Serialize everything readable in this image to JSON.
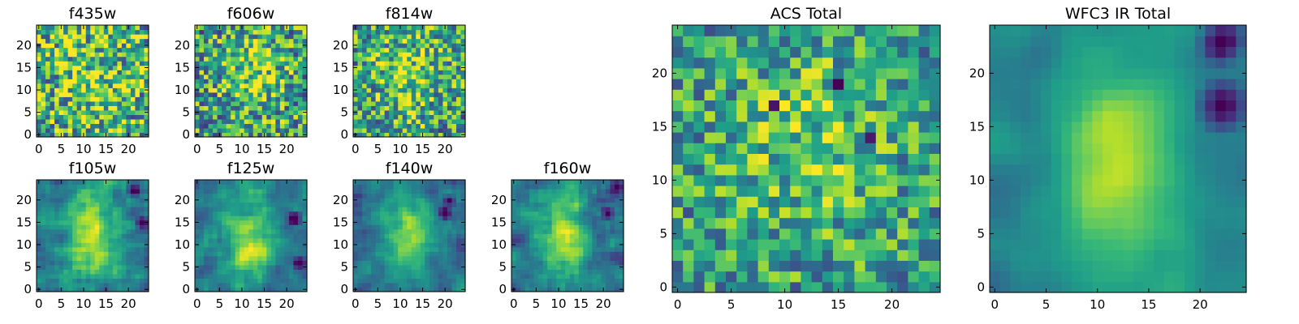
{
  "chart_data": [
    {
      "type": "heatmap",
      "title": "f435w",
      "xlim": [
        -0.5,
        24.5
      ],
      "ylim": [
        -0.5,
        24.5
      ],
      "x_ticks": [
        0,
        5,
        10,
        15,
        20
      ],
      "y_ticks": [
        0,
        5,
        10,
        15,
        20
      ],
      "colormap": "viridis",
      "grid": false
    },
    {
      "type": "heatmap",
      "title": "f606w",
      "xlim": [
        -0.5,
        24.5
      ],
      "ylim": [
        -0.5,
        24.5
      ],
      "x_ticks": [
        0,
        5,
        10,
        15,
        20
      ],
      "y_ticks": [
        0,
        5,
        10,
        15,
        20
      ],
      "colormap": "viridis",
      "grid": false
    },
    {
      "type": "heatmap",
      "title": "f814w",
      "xlim": [
        -0.5,
        24.5
      ],
      "ylim": [
        -0.5,
        24.5
      ],
      "x_ticks": [
        0,
        5,
        10,
        15,
        20
      ],
      "y_ticks": [
        0,
        5,
        10,
        15,
        20
      ],
      "colormap": "viridis",
      "grid": false
    },
    {
      "type": "heatmap",
      "title": "f105w",
      "xlim": [
        -0.5,
        24.5
      ],
      "ylim": [
        -0.5,
        24.5
      ],
      "x_ticks": [
        0,
        5,
        10,
        15,
        20
      ],
      "y_ticks": [
        0,
        5,
        10,
        15,
        20
      ],
      "colormap": "viridis",
      "grid": false
    },
    {
      "type": "heatmap",
      "title": "f125w",
      "xlim": [
        -0.5,
        24.5
      ],
      "ylim": [
        -0.5,
        24.5
      ],
      "x_ticks": [
        0,
        5,
        10,
        15,
        20
      ],
      "y_ticks": [
        0,
        5,
        10,
        15,
        20
      ],
      "colormap": "viridis",
      "grid": false
    },
    {
      "type": "heatmap",
      "title": "f140w",
      "xlim": [
        -0.5,
        24.5
      ],
      "ylim": [
        -0.5,
        24.5
      ],
      "x_ticks": [
        0,
        5,
        10,
        15,
        20
      ],
      "y_ticks": [
        0,
        5,
        10,
        15,
        20
      ],
      "colormap": "viridis",
      "grid": false
    },
    {
      "type": "heatmap",
      "title": "f160w",
      "xlim": [
        -0.5,
        24.5
      ],
      "ylim": [
        -0.5,
        24.5
      ],
      "x_ticks": [
        0,
        5,
        10,
        15,
        20
      ],
      "y_ticks": [
        0,
        5,
        10,
        15,
        20
      ],
      "colormap": "viridis",
      "grid": false
    },
    {
      "type": "heatmap",
      "title": "ACS Total",
      "xlim": [
        -0.5,
        24.5
      ],
      "ylim": [
        -0.5,
        24.5
      ],
      "x_ticks": [
        0,
        5,
        10,
        15,
        20
      ],
      "y_ticks": [
        0,
        5,
        10,
        15,
        20
      ],
      "colormap": "viridis",
      "grid": false
    },
    {
      "type": "heatmap",
      "title": "WFC3 IR Total",
      "xlim": [
        -0.5,
        24.5
      ],
      "ylim": [
        -0.5,
        24.5
      ],
      "x_ticks": [
        0,
        5,
        10,
        15,
        20
      ],
      "y_ticks": [
        0,
        5,
        10,
        15,
        20
      ],
      "colormap": "viridis",
      "grid": false
    }
  ]
}
